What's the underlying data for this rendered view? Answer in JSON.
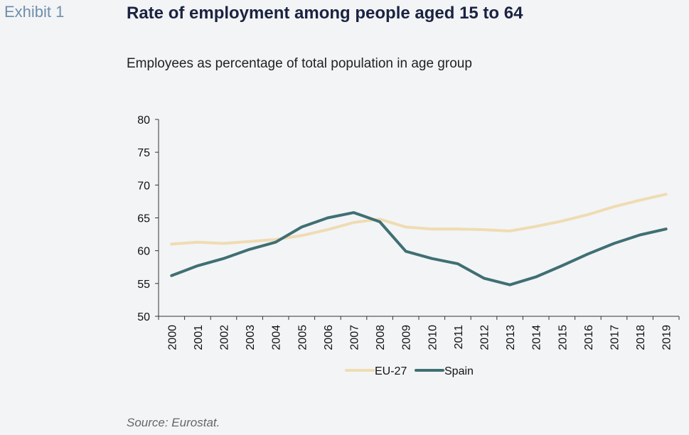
{
  "header": {
    "exhibit": "Exhibit 1",
    "title": "Rate of employment among people aged 15 to 64",
    "subtitle": "Employees as percentage of total population in age group"
  },
  "footer": {
    "source": "Source: Eurostat."
  },
  "colors": {
    "eu27": "#efdcb3",
    "spain": "#3f6f73",
    "axis": "#333333"
  },
  "chart_data": {
    "type": "line",
    "title": "Rate of employment among people aged 15 to 64",
    "subtitle": "Employees as percentage of total population in age group",
    "xlabel": "",
    "ylabel": "",
    "ylim": [
      50,
      80
    ],
    "yticks": [
      50,
      55,
      60,
      65,
      70,
      75,
      80
    ],
    "grid": false,
    "legend": "bottom-center",
    "x": [
      "2000",
      "2001",
      "2002",
      "2003",
      "2004",
      "2005",
      "2006",
      "2007",
      "2008",
      "2009",
      "2010",
      "2011",
      "2012",
      "2013",
      "2014",
      "2015",
      "2016",
      "2017",
      "2018",
      "2019"
    ],
    "series": [
      {
        "name": "EU-27",
        "values": [
          61.0,
          61.3,
          61.1,
          61.4,
          61.7,
          62.3,
          63.2,
          64.3,
          64.8,
          63.6,
          63.3,
          63.3,
          63.2,
          63.0,
          63.7,
          64.5,
          65.5,
          66.7,
          67.7,
          68.6
        ]
      },
      {
        "name": "Spain",
        "values": [
          56.2,
          57.7,
          58.8,
          60.2,
          61.3,
          63.6,
          65.0,
          65.8,
          64.4,
          59.9,
          58.8,
          58.0,
          55.8,
          54.8,
          56.0,
          57.7,
          59.5,
          61.1,
          62.4,
          63.3
        ]
      }
    ]
  }
}
